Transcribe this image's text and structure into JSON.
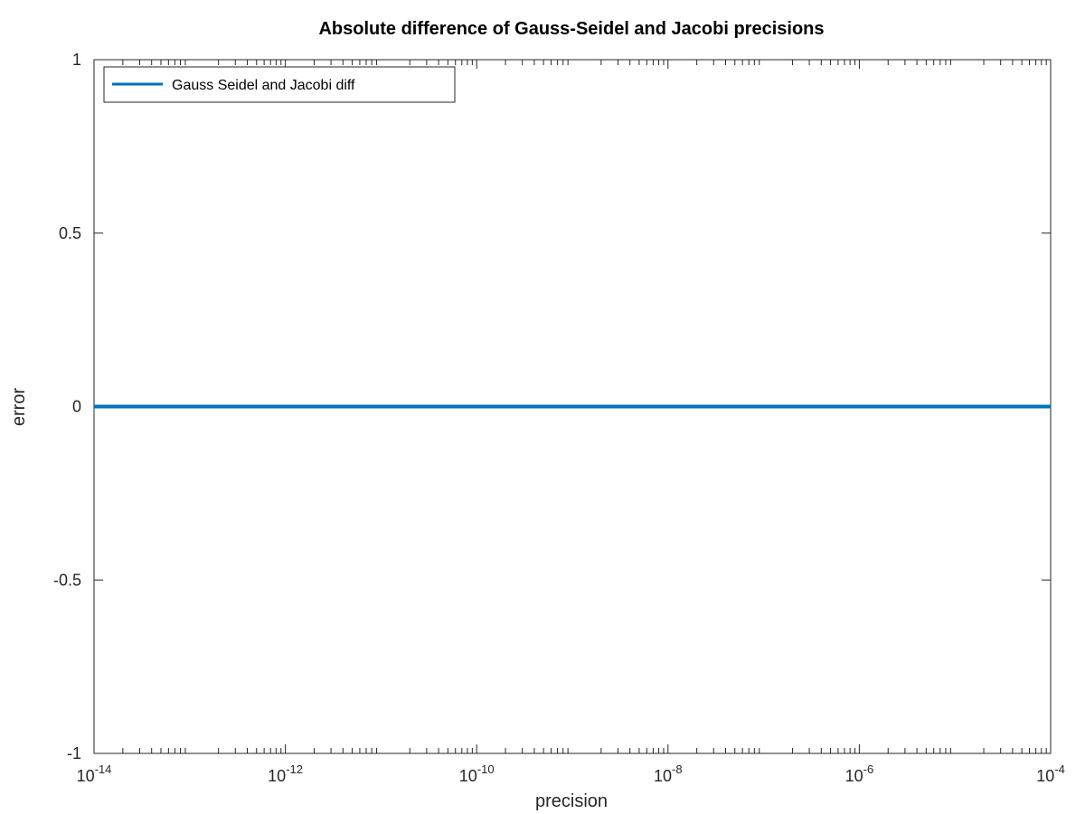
{
  "chart_data": {
    "type": "line",
    "title": "Absolute difference of Gauss-Seidel and Jacobi precisions",
    "xlabel": "precision",
    "ylabel": "error",
    "xscale": "log",
    "xlim": [
      1e-14,
      0.0001
    ],
    "ylim": [
      -1,
      1
    ],
    "xticks": [
      {
        "base": "10",
        "exp": "-14",
        "value": 1e-14
      },
      {
        "base": "10",
        "exp": "-12",
        "value": 1e-12
      },
      {
        "base": "10",
        "exp": "-10",
        "value": 1e-10
      },
      {
        "base": "10",
        "exp": "-8",
        "value": 1e-08
      },
      {
        "base": "10",
        "exp": "-6",
        "value": 1e-06
      },
      {
        "base": "10",
        "exp": "-4",
        "value": 0.0001
      }
    ],
    "yticks": [
      {
        "label": "1",
        "value": 1
      },
      {
        "label": "0.5",
        "value": 0.5
      },
      {
        "label": "0",
        "value": 0
      },
      {
        "label": "-0.5",
        "value": -0.5
      },
      {
        "label": "-1",
        "value": -1
      }
    ],
    "grid": false,
    "legend_position": "top-left",
    "series": [
      {
        "name": "Gauss Seidel and Jacobi diff",
        "color": "#0072bd",
        "x": [
          1e-14,
          1e-13,
          1e-12,
          1e-11,
          1e-10,
          1e-09,
          1e-08,
          1e-07,
          1e-06,
          1e-05,
          0.0001
        ],
        "y": [
          0,
          0,
          0,
          0,
          0,
          0,
          0,
          0,
          0,
          0,
          0
        ]
      }
    ]
  }
}
